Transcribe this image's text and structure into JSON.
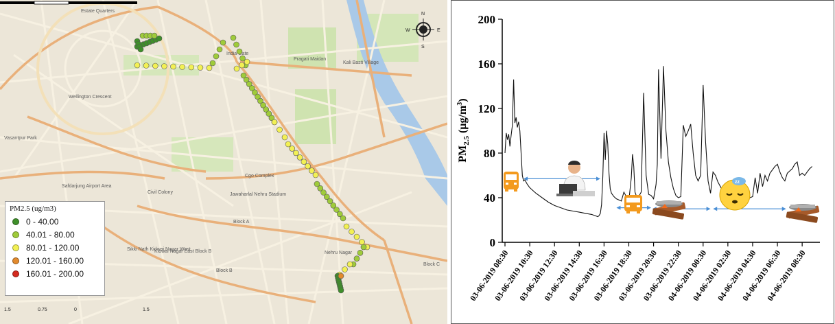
{
  "map": {
    "place_labels": [
      {
        "text": "Estate Quarters"
      },
      {
        "text": "India Gate"
      },
      {
        "text": "Pragati Maidan"
      },
      {
        "text": "Kali Basti Village"
      },
      {
        "text": "Wellington Crescent"
      },
      {
        "text": "Vasantpur Park"
      },
      {
        "text": "Safdarjung Airport Area"
      },
      {
        "text": "Civil Colony"
      },
      {
        "text": "Cgo Complex"
      },
      {
        "text": "Jawaharlal Nehru Stadium"
      },
      {
        "text": "Block A"
      },
      {
        "text": "Kidwai Nagar East Block B"
      },
      {
        "text": "Sikki Nath Kidwai Nagar West"
      },
      {
        "text": "Block B"
      },
      {
        "text": "Nehru Nagar"
      },
      {
        "text": "Block C"
      }
    ],
    "compass": {
      "n": "N",
      "s": "S",
      "e": "E",
      "w": "W"
    },
    "legend": {
      "title": "PM2.5 (ug/m3)",
      "items": [
        {
          "label": "0 - 40.00",
          "color": "#3f8f2a"
        },
        {
          "label": "40.01 - 80.00",
          "color": "#9fcb3a"
        },
        {
          "label": "80.01 - 120.00",
          "color": "#f2f054"
        },
        {
          "label": "120.01 - 160.00",
          "color": "#e28a2d"
        },
        {
          "label": "160.01 - 200.00",
          "color": "#d42a1f"
        }
      ]
    },
    "scale": {
      "labels": [
        "1.5",
        "0.75",
        "0",
        "1.5"
      ]
    }
  },
  "chart_data": {
    "type": "line",
    "ylabel": "PM2.5 (µg/m3)",
    "ylim": [
      0,
      200
    ],
    "yticks": [
      0,
      40,
      80,
      120,
      160,
      200
    ],
    "xlim": [
      0,
      25.1
    ],
    "x_tick_positions_hours": [
      0,
      2,
      4,
      6,
      8,
      10,
      12,
      14,
      16,
      18,
      20,
      22,
      24
    ],
    "x_tick_labels": [
      "03-06-2019 08:30",
      "03-06-2019 10:30",
      "03-06-2019 12:30",
      "03-06-2019 14:30",
      "03-06-2019 16:30",
      "03-06-2019 18:30",
      "03-06-2019 20:30",
      "03-06-2019 22:30",
      "04-06-2019 00:30",
      "04-06-2019 02:30",
      "04-06-2019 04:30",
      "04-06-2019 06:30",
      "04-06-2019 08:30"
    ],
    "series": [
      {
        "x": [
          0,
          0.1,
          0.2,
          0.3,
          0.4,
          0.5,
          0.6,
          0.7,
          0.8,
          0.9,
          1.0,
          1.1,
          1.2,
          1.3,
          1.4,
          1.5,
          1.6,
          1.8,
          2.0,
          2.5,
          3.0,
          3.5,
          4.0,
          4.5,
          5.0,
          5.5,
          6.0,
          6.5,
          7.0,
          7.5,
          7.6,
          7.7,
          7.8,
          7.9,
          8.0,
          8.1,
          8.2,
          8.3,
          8.4,
          8.5,
          8.6,
          8.8,
          9.0,
          9.2,
          9.4,
          9.6,
          9.8,
          10.0,
          10.2,
          10.3,
          10.4,
          10.5,
          10.6,
          10.8,
          11.0,
          11.2,
          11.4,
          11.6,
          11.8,
          12.0,
          12.2,
          12.3,
          12.4,
          12.6,
          12.8,
          13.0,
          13.2,
          13.4,
          13.6,
          13.8,
          14.0,
          14.2,
          14.4,
          14.6,
          14.8,
          15.0,
          15.2,
          15.4,
          15.6,
          15.8,
          16.0,
          16.2,
          16.4,
          16.6,
          16.8,
          17.0,
          17.2,
          17.4,
          17.6,
          17.8,
          18.0,
          18.2,
          18.4,
          18.6,
          18.8,
          19.0,
          19.2,
          19.4,
          19.6,
          19.8,
          20.0,
          20.2,
          20.4,
          20.6,
          20.8,
          21.0,
          21.2,
          21.4,
          21.6,
          21.8,
          22.0,
          22.2,
          22.4,
          22.6,
          22.8,
          23.0,
          23.2,
          23.4,
          23.6,
          23.8,
          24.0,
          24.2,
          24.4,
          24.6,
          24.8
        ],
        "y": [
          80,
          98,
          92,
          97,
          86,
          96,
          105,
          146,
          107,
          112,
          103,
          108,
          100,
          80,
          60,
          55,
          56,
          52,
          49,
          44,
          40,
          36,
          33,
          31,
          29,
          28,
          27,
          26,
          25,
          23,
          24,
          26,
          34,
          59,
          98,
          74,
          100,
          88,
          62,
          48,
          44,
          41,
          39,
          38,
          37,
          45,
          41,
          37,
          58,
          79,
          68,
          45,
          42,
          41,
          45,
          134,
          60,
          43,
          42,
          39,
          52,
          70,
          155,
          75,
          158,
          100,
          72,
          58,
          48,
          42,
          40,
          41,
          105,
          95,
          100,
          106,
          80,
          60,
          55,
          60,
          141,
          90,
          55,
          44,
          63,
          60,
          54,
          50,
          46,
          44,
          42,
          41,
          40,
          42,
          44,
          45,
          46,
          44,
          42,
          40,
          41,
          58,
          44,
          62,
          50,
          60,
          55,
          62,
          65,
          68,
          70,
          63,
          58,
          55,
          62,
          64,
          66,
          70,
          72,
          60,
          62,
          60,
          63,
          66,
          68
        ]
      }
    ],
    "annotations": {
      "arrow_spans_hours": [
        [
          1.5,
          7.7
        ],
        [
          9.0,
          11.8
        ],
        [
          11.9,
          16.6
        ],
        [
          16.8,
          22.7
        ]
      ]
    }
  }
}
